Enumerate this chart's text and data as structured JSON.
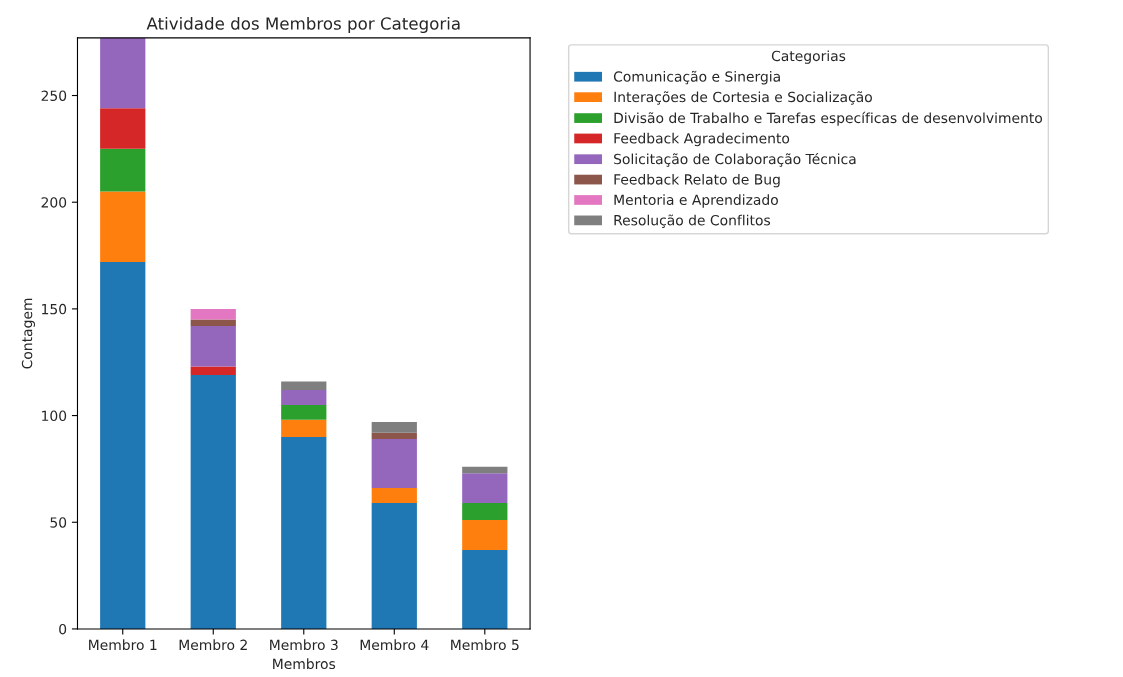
{
  "chart_data": {
    "type": "bar",
    "title": "Atividade dos Membros por Categoria",
    "xlabel": "Membros",
    "ylabel": "Contagem",
    "legend_title": "Categorias",
    "categories": [
      "Membro 1",
      "Membro 2",
      "Membro 3",
      "Membro 4",
      "Membro 5"
    ],
    "stacked": true,
    "legend": "top right",
    "grid": false,
    "ylim": [
      0,
      277
    ],
    "yticks": [
      0,
      50,
      100,
      150,
      200,
      250
    ],
    "series": [
      {
        "name": "Comunicação e Sinergia",
        "color": "#1f77b4",
        "values": [
          172,
          119,
          90,
          59,
          37
        ]
      },
      {
        "name": "Interações de Cortesia e Socialização",
        "color": "#ff7f0e",
        "values": [
          33,
          0,
          8,
          7,
          14
        ]
      },
      {
        "name": "Divisão de Trabalho e Tarefas específicas de desenvolvimento",
        "color": "#2ca02c",
        "values": [
          20,
          0,
          7,
          0,
          8
        ]
      },
      {
        "name": "Feedback Agradecimento",
        "color": "#d62728",
        "values": [
          19,
          4,
          0,
          0,
          0
        ]
      },
      {
        "name": "Solicitação de Colaboração Técnica",
        "color": "#9467bd",
        "values": [
          33,
          19,
          7,
          23,
          14
        ]
      },
      {
        "name": "Feedback Relato de Bug",
        "color": "#8c564b",
        "values": [
          0,
          3,
          0,
          3,
          0
        ]
      },
      {
        "name": "Mentoria e Aprendizado",
        "color": "#e377c2",
        "values": [
          0,
          5,
          0,
          0,
          0
        ]
      },
      {
        "name": "Resolução de Conflitos",
        "color": "#7f7f7f",
        "values": [
          0,
          0,
          4,
          5,
          3
        ]
      }
    ]
  }
}
